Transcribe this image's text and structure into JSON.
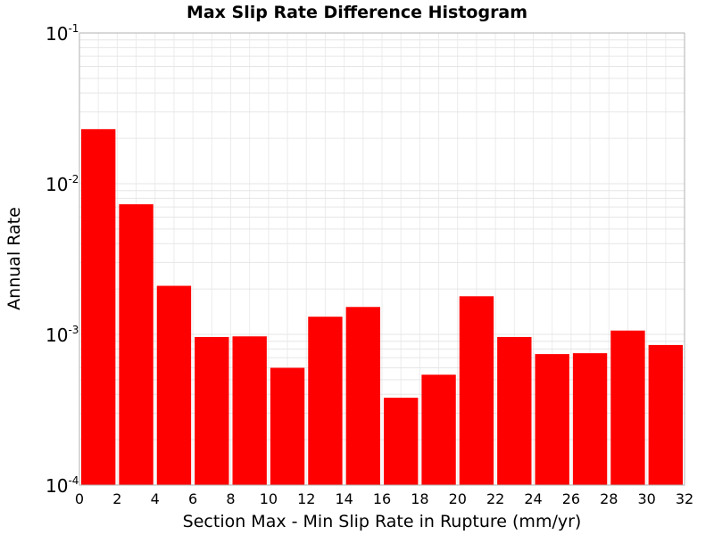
{
  "chart_data": {
    "type": "bar",
    "title": "Max Slip Rate Difference Histogram",
    "xlabel": "Section Max - Min Slip Rate in Rupture (mm/yr)",
    "ylabel": "Annual Rate",
    "xlim": [
      0,
      32
    ],
    "ylim": [
      0.0001,
      0.1
    ],
    "yscale": "log",
    "bin_width": 2,
    "x_ticks": [
      0,
      2,
      4,
      6,
      8,
      10,
      12,
      14,
      16,
      18,
      20,
      22,
      24,
      26,
      28,
      30,
      32
    ],
    "y_ticks": [
      {
        "base": "10",
        "exp": "-4",
        "value": 0.0001
      },
      {
        "base": "10",
        "exp": "-3",
        "value": 0.001
      },
      {
        "base": "10",
        "exp": "-2",
        "value": 0.01
      },
      {
        "base": "10",
        "exp": "-1",
        "value": 0.1
      }
    ],
    "bins": [
      {
        "x": 1,
        "value": 0.023
      },
      {
        "x": 3,
        "value": 0.0073
      },
      {
        "x": 5,
        "value": 0.0021
      },
      {
        "x": 7,
        "value": 0.00096
      },
      {
        "x": 9,
        "value": 0.00097
      },
      {
        "x": 11,
        "value": 0.0006
      },
      {
        "x": 13,
        "value": 0.00131
      },
      {
        "x": 15,
        "value": 0.00152
      },
      {
        "x": 17,
        "value": 0.00038
      },
      {
        "x": 19,
        "value": 0.00054
      },
      {
        "x": 21,
        "value": 0.00179
      },
      {
        "x": 23,
        "value": 0.00096
      },
      {
        "x": 25,
        "value": 0.00074
      },
      {
        "x": 27,
        "value": 0.00075
      },
      {
        "x": 29,
        "value": 0.00106
      },
      {
        "x": 31,
        "value": 0.00085
      }
    ],
    "bar_color": "#ff0000",
    "grid": true,
    "legend": "none"
  }
}
